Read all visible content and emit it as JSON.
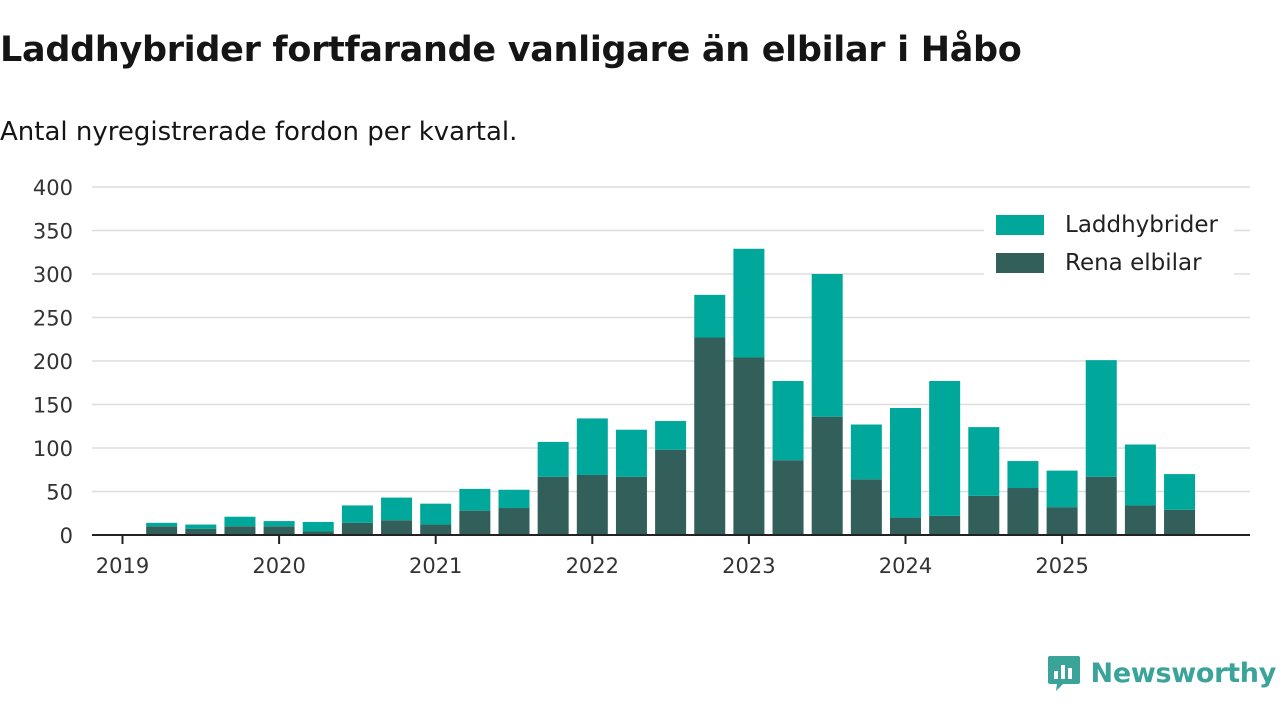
{
  "title": "Laddhybrider fortfarande vanligare än elbilar i Håbo",
  "subtitle": "Antal nyregistrerade fordon per kvartal.",
  "brand": {
    "name": "Newsworthy",
    "icon": "newsworthy-logo-icon"
  },
  "colors": {
    "laddhybrider": "#00a89b",
    "elbilar": "#335f5b",
    "grid": "#dddddd",
    "axis": "#222222"
  },
  "chart_data": {
    "type": "bar",
    "stacked": true,
    "title": "Laddhybrider fortfarande vanligare än elbilar i Håbo",
    "subtitle": "Antal nyregistrerade fordon per kvartal.",
    "categories": [
      "2019 Q2",
      "2019 Q3",
      "2019 Q4",
      "2020 Q1",
      "2020 Q2",
      "2020 Q3",
      "2020 Q4",
      "2021 Q1",
      "2021 Q2",
      "2021 Q3",
      "2021 Q4",
      "2022 Q1",
      "2022 Q2",
      "2022 Q3",
      "2022 Q4",
      "2023 Q1",
      "2023 Q2",
      "2023 Q3",
      "2023 Q4",
      "2024 Q1",
      "2024 Q2",
      "2024 Q3",
      "2024 Q4",
      "2025 Q1",
      "2025 Q2",
      "2025 Q3",
      "2025 Q4"
    ],
    "series": [
      {
        "name": "Rena elbilar",
        "color": "#335f5b",
        "values": [
          10,
          7,
          10,
          10,
          4,
          14,
          17,
          12,
          28,
          31,
          67,
          69,
          67,
          98,
          227,
          204,
          86,
          136,
          64,
          20,
          22,
          45,
          54,
          32,
          67,
          34,
          29
        ]
      },
      {
        "name": "Laddhybrider",
        "color": "#00a89b",
        "values": [
          4,
          5,
          11,
          6,
          11,
          20,
          26,
          24,
          25,
          21,
          40,
          65,
          54,
          33,
          49,
          125,
          91,
          164,
          63,
          126,
          155,
          79,
          31,
          42,
          134,
          70,
          41
        ]
      }
    ],
    "legend": [
      "Laddhybrider",
      "Rena elbilar"
    ],
    "legend_position": "top-right",
    "x_tick_labels": [
      "2019",
      "2020",
      "2021",
      "2022",
      "2023",
      "2024",
      "2025"
    ],
    "y_ticks": [
      0,
      50,
      100,
      150,
      200,
      250,
      300,
      350,
      400
    ],
    "ylim": [
      0,
      400
    ],
    "xlabel": "",
    "ylabel": ""
  }
}
